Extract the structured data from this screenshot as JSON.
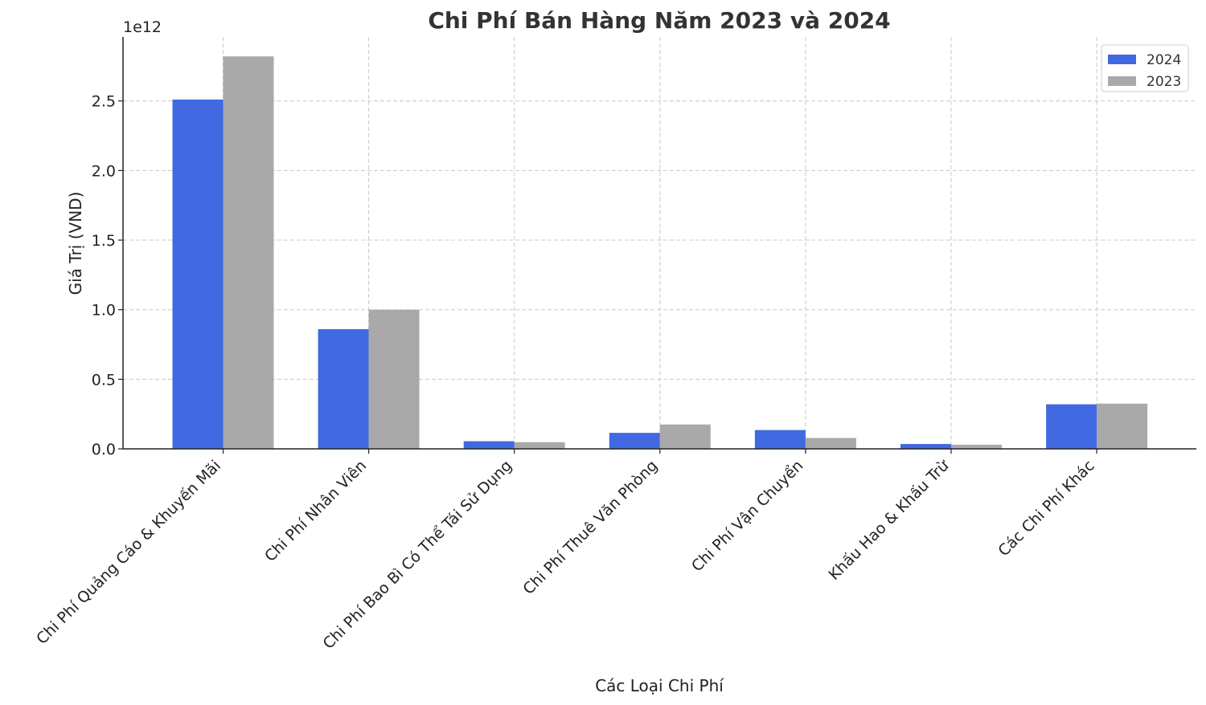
{
  "chart_data": {
    "type": "bar",
    "title": "Chi Phí Bán Hàng Năm 2023 và 2024",
    "xlabel": "Các Loại Chi Phí",
    "ylabel": "Giá Trị (VND)",
    "y_multiplier_label": "1e12",
    "ylim": [
      0,
      2.96
    ],
    "yticks": [
      0,
      0.5,
      1.0,
      1.5,
      2.0,
      2.5
    ],
    "ytick_labels": [
      "0.0",
      "0.5",
      "1.0",
      "1.5",
      "2.0",
      "2.5"
    ],
    "categories": [
      "Chi Phí Quảng Cáo & Khuyến Mãi",
      "Chi Phí Nhân Viên",
      "Chi Phí Bao Bì Có Thể Tái Sử Dụng",
      "Chi Phí Thuê Văn Phòng",
      "Chi Phí Vận Chuyển",
      "Khấu Hao & Khấu Trừ",
      "Các Chi Phí Khác"
    ],
    "series": [
      {
        "name": "2024",
        "color": "#4169E1",
        "values": [
          2.51,
          0.86,
          0.055,
          0.115,
          0.135,
          0.035,
          0.32
        ]
      },
      {
        "name": "2023",
        "color": "#A9A9A9",
        "values": [
          2.82,
          1.0,
          0.048,
          0.175,
          0.078,
          0.03,
          0.325
        ]
      }
    ],
    "grid": true,
    "legend_position": "top-right"
  }
}
